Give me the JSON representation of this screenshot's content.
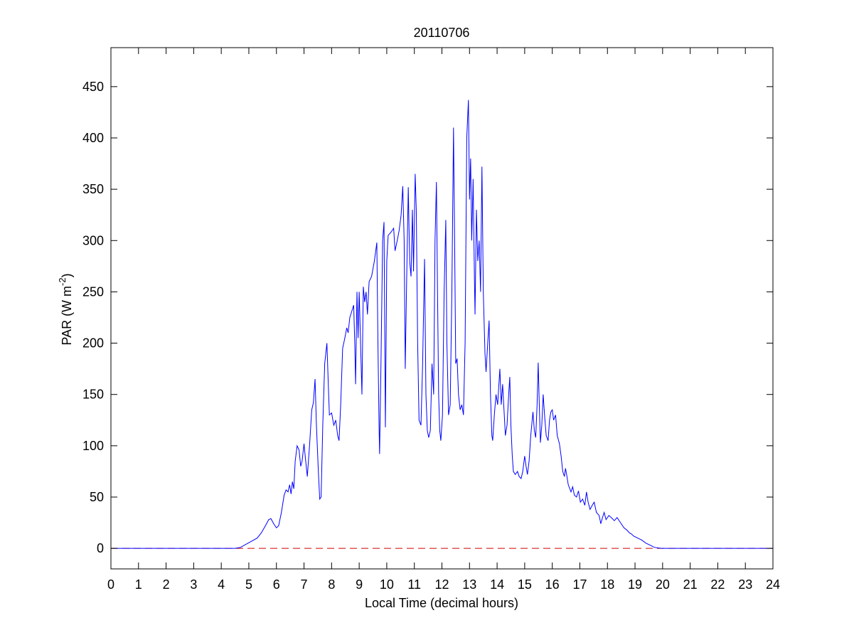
{
  "chart_data": {
    "type": "line",
    "title": "20110706",
    "xlabel": "Local Time (decimal hours)",
    "ylabel": [
      "PAR (W m",
      "-2",
      ")"
    ],
    "xlim": [
      0,
      24
    ],
    "xticks": [
      0,
      1,
      2,
      3,
      4,
      5,
      6,
      7,
      8,
      9,
      10,
      11,
      12,
      13,
      14,
      15,
      16,
      17,
      18,
      19,
      20,
      21,
      22,
      23,
      24
    ],
    "ylim": [
      -20,
      488
    ],
    "yticks": [
      0,
      50,
      100,
      150,
      200,
      250,
      300,
      350,
      400,
      450
    ],
    "hlines": [
      {
        "value": 0,
        "color": "#d00000",
        "dashed": true
      }
    ],
    "x": [
      0,
      4.5,
      4.7,
      4.9,
      5.1,
      5.3,
      5.45,
      5.6,
      5.72,
      5.8,
      5.9,
      6.0,
      6.08,
      6.18,
      6.28,
      6.35,
      6.42,
      6.48,
      6.53,
      6.58,
      6.63,
      6.68,
      6.75,
      6.82,
      6.88,
      6.93,
      7.0,
      7.05,
      7.12,
      7.2,
      7.28,
      7.34,
      7.4,
      7.45,
      7.52,
      7.57,
      7.62,
      7.68,
      7.75,
      7.83,
      7.88,
      7.92,
      8.0,
      8.08,
      8.15,
      8.22,
      8.27,
      8.33,
      8.4,
      8.48,
      8.55,
      8.6,
      8.66,
      8.72,
      8.8,
      8.84,
      8.87,
      8.92,
      8.96,
      9.0,
      9.05,
      9.1,
      9.15,
      9.2,
      9.25,
      9.3,
      9.36,
      9.45,
      9.55,
      9.64,
      9.68,
      9.72,
      9.74,
      9.79,
      9.85,
      9.9,
      9.95,
      10.0,
      10.05,
      10.15,
      10.25,
      10.3,
      10.38,
      10.45,
      10.52,
      10.58,
      10.63,
      10.67,
      10.72,
      10.78,
      10.83,
      10.88,
      10.93,
      10.97,
      11.03,
      11.07,
      11.12,
      11.17,
      11.24,
      11.3,
      11.37,
      11.42,
      11.47,
      11.52,
      11.58,
      11.64,
      11.7,
      11.75,
      11.8,
      11.84,
      11.88,
      11.92,
      11.96,
      12.02,
      12.08,
      12.14,
      12.18,
      12.24,
      12.3,
      12.36,
      12.42,
      12.46,
      12.5,
      12.55,
      12.6,
      12.66,
      12.72,
      12.78,
      12.84,
      12.9,
      12.96,
      13.0,
      13.04,
      13.08,
      13.13,
      13.18,
      13.2,
      13.25,
      13.3,
      13.35,
      13.4,
      13.45,
      13.5,
      13.56,
      13.6,
      13.66,
      13.71,
      13.76,
      13.81,
      13.84,
      13.9,
      13.96,
      14.02,
      14.1,
      14.15,
      14.2,
      14.26,
      14.3,
      14.36,
      14.42,
      14.46,
      14.5,
      14.55,
      14.59,
      14.66,
      14.74,
      14.8,
      14.87,
      14.93,
      15.0,
      15.05,
      15.1,
      15.16,
      15.22,
      15.3,
      15.35,
      15.4,
      15.45,
      15.49,
      15.53,
      15.57,
      15.62,
      15.67,
      15.72,
      15.78,
      15.85,
      15.9,
      15.95,
      16.0,
      16.05,
      16.12,
      16.18,
      16.26,
      16.32,
      16.38,
      16.44,
      16.48,
      16.52,
      16.58,
      16.68,
      16.74,
      16.8,
      16.88,
      16.95,
      17.02,
      17.1,
      17.18,
      17.24,
      17.3,
      17.37,
      17.45,
      17.52,
      17.6,
      17.7,
      17.76,
      17.82,
      17.88,
      17.95,
      18.05,
      18.14,
      18.25,
      18.35,
      18.4,
      18.5,
      18.6,
      18.7,
      18.8,
      18.87,
      18.95,
      19.1,
      19.25,
      19.4,
      19.56,
      19.7,
      19.95,
      24
    ],
    "series": [
      {
        "color": "#0000ff",
        "values": [
          0,
          0,
          1,
          4,
          7,
          10,
          15,
          22,
          28,
          29,
          24,
          20,
          22,
          35,
          52,
          57,
          55,
          62,
          53,
          65,
          58,
          85,
          100,
          96,
          80,
          85,
          102,
          88,
          70,
          100,
          135,
          142,
          165,
          120,
          75,
          48,
          50,
          120,
          180,
          200,
          160,
          130,
          132,
          120,
          125,
          110,
          105,
          140,
          195,
          205,
          215,
          210,
          225,
          230,
          237,
          200,
          160,
          250,
          205,
          250,
          200,
          150,
          255,
          240,
          250,
          228,
          260,
          265,
          280,
          298,
          200,
          120,
          92,
          180,
          300,
          318,
          118,
          280,
          305,
          308,
          312,
          290,
          300,
          310,
          325,
          353,
          300,
          175,
          260,
          352,
          280,
          265,
          330,
          270,
          365,
          330,
          200,
          125,
          120,
          180,
          282,
          150,
          115,
          108,
          115,
          180,
          150,
          300,
          357,
          250,
          150,
          115,
          105,
          130,
          250,
          320,
          200,
          130,
          140,
          250,
          410,
          300,
          180,
          185,
          150,
          135,
          140,
          130,
          200,
          400,
          437,
          340,
          380,
          300,
          360,
          260,
          228,
          330,
          280,
          300,
          250,
          372,
          250,
          190,
          172,
          200,
          222,
          150,
          110,
          105,
          130,
          150,
          140,
          175,
          140,
          160,
          130,
          110,
          120,
          150,
          167,
          120,
          90,
          75,
          72,
          75,
          70,
          68,
          75,
          90,
          80,
          72,
          85,
          110,
          133,
          115,
          108,
          140,
          181,
          140,
          103,
          120,
          150,
          130,
          110,
          105,
          125,
          133,
          135,
          125,
          130,
          110,
          102,
          90,
          75,
          70,
          78,
          72,
          62,
          55,
          60,
          52,
          50,
          56,
          45,
          48,
          42,
          55,
          45,
          38,
          42,
          45,
          35,
          32,
          24,
          30,
          35,
          28,
          32,
          30,
          27,
          30,
          28,
          24,
          20,
          18,
          15,
          14,
          12,
          10,
          8,
          5,
          3,
          1,
          0,
          0
        ]
      }
    ]
  }
}
